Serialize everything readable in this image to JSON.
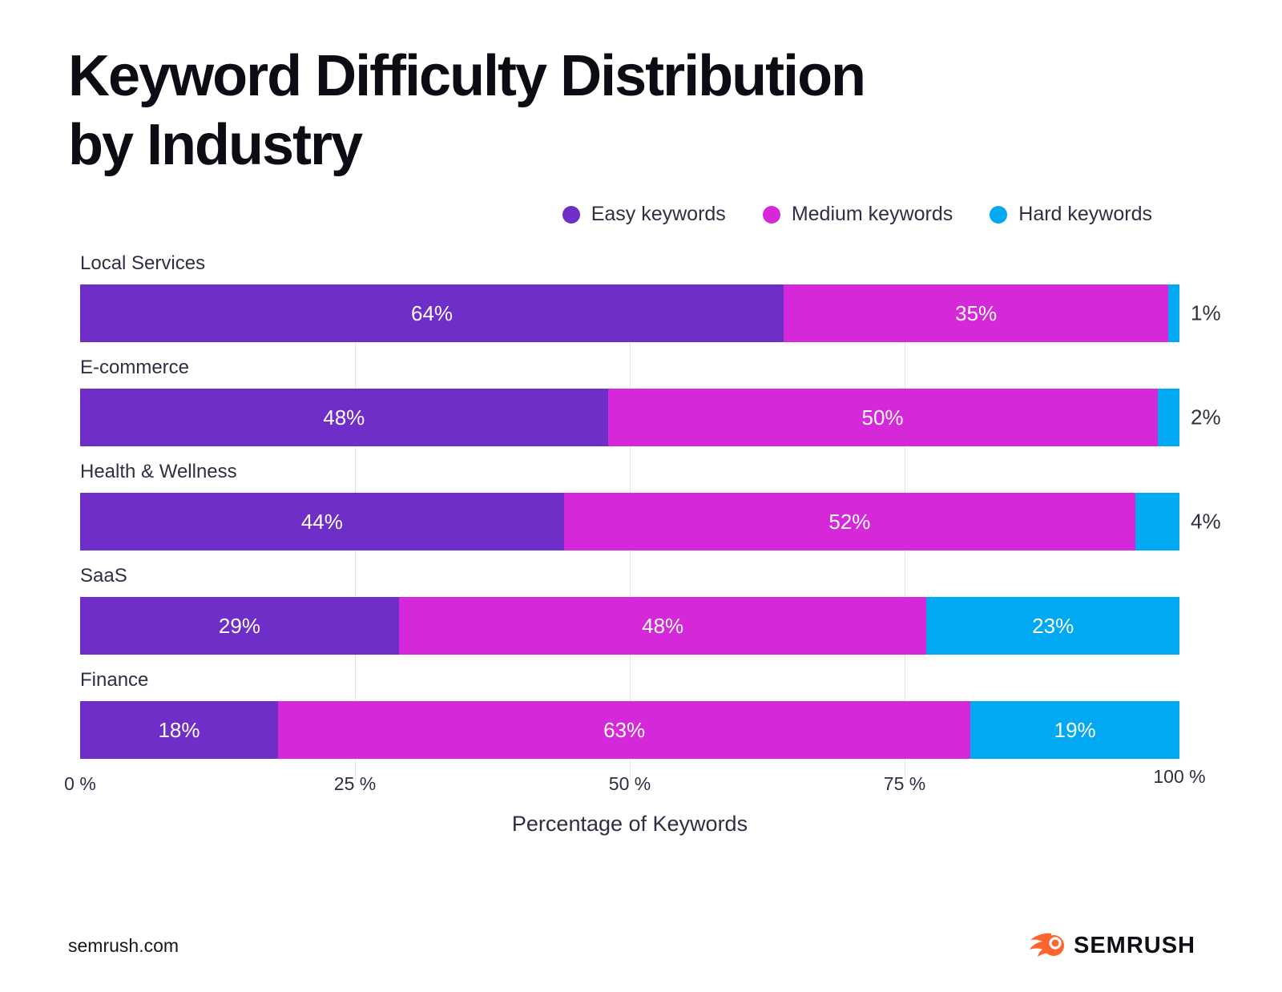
{
  "title": {
    "line1": "Keyword Difficulty Distribution",
    "line2": "by Industry"
  },
  "legend": {
    "items": [
      {
        "label": "Easy keywords",
        "color": "#6f2ec7"
      },
      {
        "label": "Medium keywords",
        "color": "#d428d9"
      },
      {
        "label": "Hard keywords",
        "color": "#00a9f2"
      }
    ]
  },
  "chart_data": {
    "type": "bar",
    "orientation": "horizontal",
    "stacked": true,
    "categories": [
      "Local Services",
      "E-commerce",
      "Health & Wellness",
      "SaaS",
      "Finance"
    ],
    "series": [
      {
        "name": "Easy keywords",
        "color": "#6f2ec7",
        "values": [
          64,
          48,
          44,
          29,
          18
        ]
      },
      {
        "name": "Medium keywords",
        "color": "#d428d9",
        "values": [
          35,
          50,
          52,
          48,
          63
        ]
      },
      {
        "name": "Hard keywords",
        "color": "#00a9f2",
        "values": [
          1,
          2,
          4,
          23,
          19
        ]
      }
    ],
    "value_label_format": "{v}%",
    "xlabel": "Percentage of Keywords",
    "xlim": [
      0,
      100
    ],
    "x_ticks": [
      "0 %",
      "25 %",
      "50 %",
      "75 %",
      "100 %"
    ],
    "x_tick_positions": [
      0,
      25,
      50,
      75,
      100
    ],
    "gridline_positions": [
      25,
      50,
      75
    ],
    "gridline_color": "#e4e4ea",
    "legend_position": "top-right",
    "label_color_inside": "#ffffff",
    "label_color_outside": "#2e2e44"
  },
  "footer": {
    "site": "semrush.com",
    "brand": "SEMRUSH",
    "brand_color": "#ff642d"
  }
}
